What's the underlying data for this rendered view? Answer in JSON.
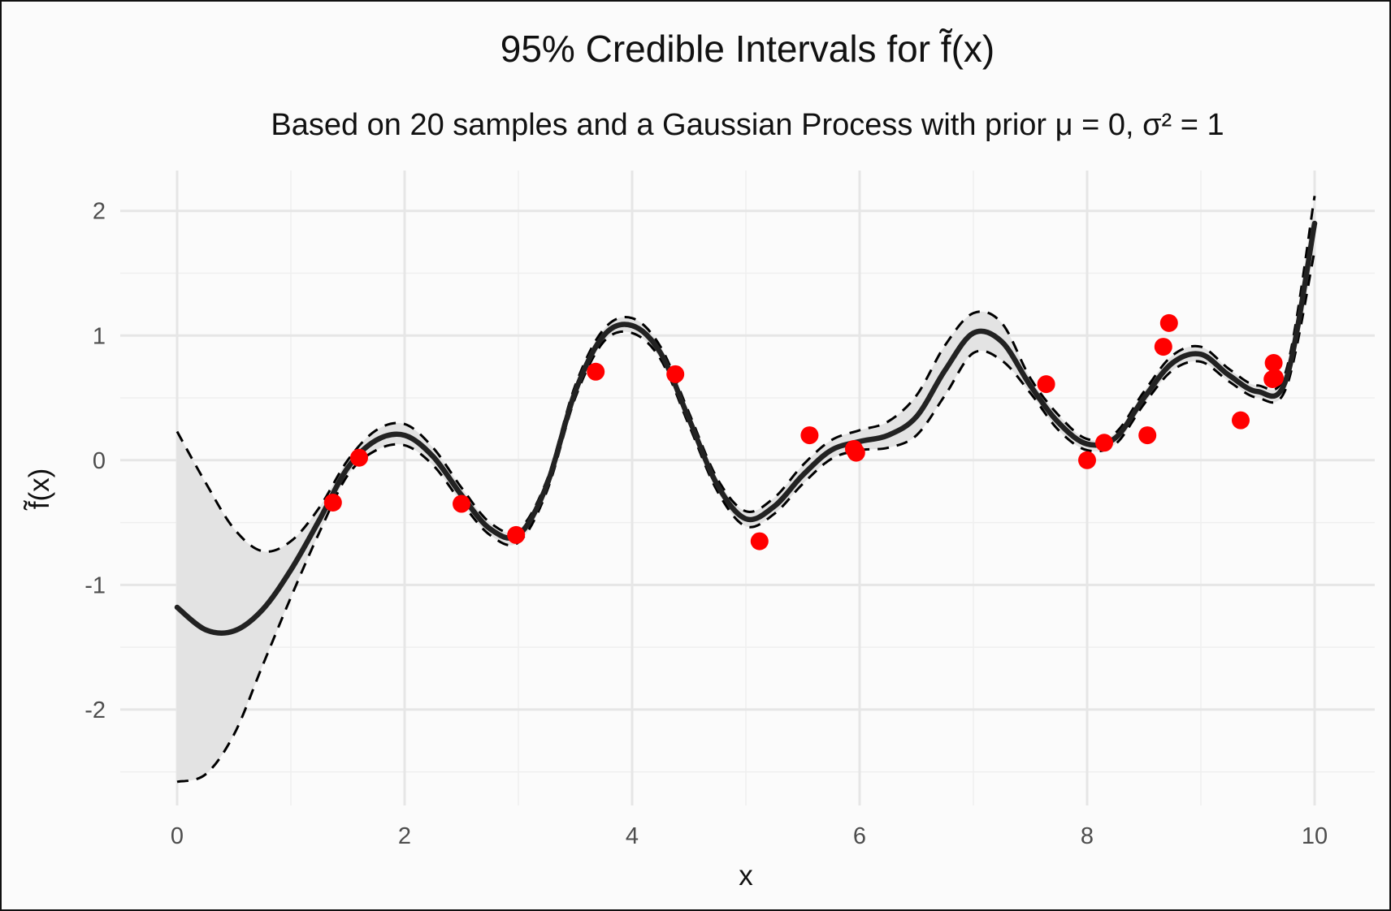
{
  "chart_data": {
    "type": "line",
    "title": "95% Credible Intervals for f̃(x)",
    "subtitle": "Based on 20 samples and a Gaussian Process with prior μ = 0, σ² = 1",
    "xlabel": "x",
    "ylabel": "f̃(x)",
    "xlim": [
      0,
      10
    ],
    "ylim": [
      -2.6,
      2.2
    ],
    "x_ticks": [
      0,
      2,
      4,
      6,
      8,
      10
    ],
    "x_tick_labels": [
      "0",
      "2",
      "4",
      "6",
      "8",
      "10"
    ],
    "y_ticks": [
      -2,
      -1,
      0,
      1,
      2
    ],
    "y_tick_labels": [
      "-2",
      "-1",
      "0",
      "1",
      "2"
    ],
    "grid": true,
    "legend": "none",
    "colors": {
      "mean": "#222222",
      "bounds": "#000000",
      "band": "#e3e3e3",
      "points": "#ff0000"
    },
    "x": [
      0,
      0.25,
      0.5,
      0.75,
      1.0,
      1.25,
      1.5,
      1.75,
      2.0,
      2.25,
      2.5,
      2.75,
      3.0,
      3.25,
      3.5,
      3.75,
      4.0,
      4.25,
      4.5,
      4.75,
      5.0,
      5.25,
      5.5,
      5.75,
      6.0,
      6.25,
      6.5,
      6.75,
      7.0,
      7.25,
      7.5,
      7.75,
      8.0,
      8.25,
      8.5,
      8.75,
      9.0,
      9.25,
      9.5,
      9.75,
      10.0
    ],
    "series": [
      {
        "role": "mean",
        "values": [
          -1.18,
          -1.36,
          -1.37,
          -1.2,
          -0.88,
          -0.48,
          -0.06,
          0.16,
          0.2,
          0.03,
          -0.28,
          -0.55,
          -0.6,
          -0.2,
          0.55,
          1.0,
          1.08,
          0.86,
          0.33,
          -0.2,
          -0.47,
          -0.37,
          -0.12,
          0.08,
          0.15,
          0.2,
          0.35,
          0.72,
          1.02,
          0.95,
          0.6,
          0.3,
          0.13,
          0.18,
          0.5,
          0.78,
          0.85,
          0.68,
          0.55,
          0.65,
          1.9
        ]
      },
      {
        "role": "upper",
        "values": [
          0.23,
          -0.18,
          -0.55,
          -0.73,
          -0.65,
          -0.38,
          0.0,
          0.24,
          0.29,
          0.1,
          -0.22,
          -0.5,
          -0.56,
          -0.16,
          0.6,
          1.05,
          1.14,
          0.91,
          0.38,
          -0.15,
          -0.41,
          -0.3,
          -0.04,
          0.16,
          0.24,
          0.31,
          0.52,
          0.92,
          1.18,
          1.1,
          0.66,
          0.36,
          0.17,
          0.22,
          0.55,
          0.84,
          0.91,
          0.73,
          0.6,
          0.72,
          2.12
        ]
      },
      {
        "role": "lower",
        "values": [
          -2.58,
          -2.52,
          -2.2,
          -1.65,
          -1.1,
          -0.58,
          -0.12,
          0.08,
          0.12,
          -0.04,
          -0.34,
          -0.6,
          -0.66,
          -0.25,
          0.5,
          0.95,
          1.02,
          0.81,
          0.28,
          -0.25,
          -0.53,
          -0.43,
          -0.19,
          0.01,
          0.08,
          0.1,
          0.2,
          0.52,
          0.86,
          0.8,
          0.54,
          0.24,
          0.08,
          0.13,
          0.45,
          0.72,
          0.79,
          0.63,
          0.5,
          0.58,
          1.68
        ]
      }
    ],
    "points": {
      "x": [
        1.37,
        1.6,
        2.5,
        2.98,
        3.68,
        4.38,
        5.12,
        5.56,
        5.95,
        5.97,
        7.64,
        8.0,
        8.15,
        8.53,
        8.67,
        8.72,
        9.35,
        9.63,
        9.64,
        9.65
      ],
      "y": [
        -0.34,
        0.02,
        -0.35,
        -0.6,
        0.71,
        0.69,
        -0.65,
        0.2,
        0.09,
        0.06,
        0.61,
        0.0,
        0.14,
        0.2,
        0.91,
        1.1,
        0.32,
        0.65,
        0.78,
        0.66
      ]
    }
  }
}
